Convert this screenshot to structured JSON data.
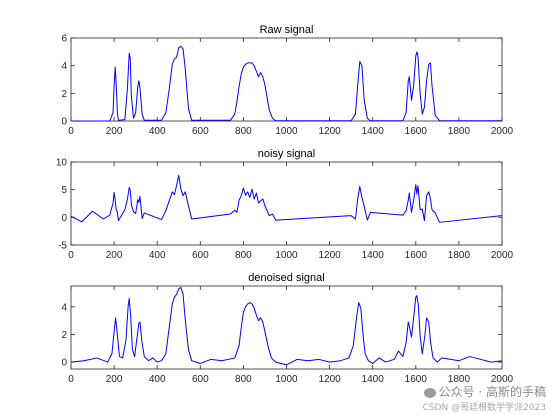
{
  "chart_data": [
    {
      "type": "line",
      "title": "Raw signal",
      "xlim": [
        0,
        2000
      ],
      "ylim": [
        0,
        6
      ],
      "xticks": [
        0,
        200,
        400,
        600,
        800,
        1000,
        1200,
        1400,
        1600,
        1800,
        2000
      ],
      "yticks": [
        0,
        2,
        4,
        6
      ],
      "color": "#0000ff",
      "grid": false,
      "series": [
        {
          "x": [
            0,
            180,
            195,
            200,
            205,
            210,
            215,
            220,
            250,
            262,
            270,
            275,
            280,
            290,
            300,
            310,
            315,
            320,
            330,
            340,
            420,
            440,
            455,
            470,
            480,
            490,
            500,
            510,
            520,
            530,
            545,
            560,
            740,
            760,
            770,
            780,
            790,
            800,
            810,
            820,
            830,
            840,
            850,
            860,
            870,
            880,
            890,
            900,
            910,
            920,
            935,
            950,
            1300,
            1320,
            1330,
            1340,
            1350,
            1360,
            1375,
            1390,
            1540,
            1555,
            1565,
            1570,
            1580,
            1590,
            1600,
            1605,
            1610,
            1620,
            1630,
            1640,
            1650,
            1660,
            1668,
            1675,
            1690,
            1710,
            2000
          ],
          "y": [
            0,
            0,
            0.6,
            2.5,
            3.9,
            2.6,
            0.6,
            0.05,
            0.1,
            2.4,
            4.9,
            4.5,
            1.8,
            0.2,
            0.6,
            2.5,
            2.9,
            2.4,
            0.5,
            0.05,
            0.05,
            0.6,
            2.2,
            4.1,
            4.5,
            4.6,
            5.3,
            5.4,
            5.2,
            3.8,
            0.9,
            0.05,
            0.05,
            0.5,
            1.4,
            2.5,
            3.4,
            3.9,
            4.1,
            4.2,
            4.2,
            4.2,
            4.0,
            3.6,
            3.2,
            3.5,
            3.2,
            2.6,
            1.7,
            0.8,
            0.2,
            0.02,
            0.02,
            0.5,
            2.5,
            4.3,
            4.0,
            1.6,
            0.2,
            0.02,
            0.02,
            0.6,
            2.9,
            3.2,
            1.5,
            2.6,
            4.7,
            5.0,
            4.7,
            2.0,
            0.5,
            1.0,
            2.9,
            4.1,
            4.2,
            2.6,
            0.4,
            0.02,
            0.02
          ]
        }
      ]
    },
    {
      "type": "line",
      "title": "noisy signal",
      "xlim": [
        0,
        2000
      ],
      "ylim": [
        -5,
        10
      ],
      "xticks": [
        0,
        200,
        400,
        600,
        800,
        1000,
        1200,
        1400,
        1600,
        1800,
        2000
      ],
      "yticks": [
        -5,
        0,
        5,
        10
      ],
      "color": "#0000ff",
      "grid": false,
      "series": [
        {
          "x": [
            0,
            50,
            100,
            150,
            180,
            195,
            200,
            205,
            210,
            215,
            220,
            250,
            262,
            270,
            275,
            280,
            290,
            300,
            310,
            315,
            320,
            330,
            340,
            420,
            440,
            455,
            470,
            480,
            490,
            500,
            510,
            520,
            530,
            545,
            560,
            740,
            760,
            770,
            780,
            790,
            800,
            810,
            820,
            830,
            840,
            850,
            860,
            870,
            880,
            890,
            900,
            910,
            920,
            935,
            950,
            1300,
            1320,
            1330,
            1340,
            1350,
            1360,
            1375,
            1390,
            1540,
            1555,
            1565,
            1570,
            1580,
            1590,
            1600,
            1605,
            1610,
            1620,
            1630,
            1640,
            1650,
            1660,
            1668,
            1675,
            1690,
            1710,
            2000
          ],
          "y": [
            0.2,
            -0.8,
            1.1,
            -0.3,
            0.4,
            2.6,
            4.5,
            3.1,
            1.3,
            1.0,
            -0.6,
            1.4,
            3.3,
            5.4,
            4.9,
            2.3,
            1.0,
            0.7,
            3.2,
            2.7,
            3.8,
            -0.2,
            0.8,
            -0.4,
            1.2,
            2.9,
            4.6,
            4.1,
            5.8,
            7.6,
            5.1,
            3.9,
            4.6,
            2.1,
            -0.3,
            0.6,
            1.3,
            0.9,
            3.1,
            3.9,
            5.3,
            4.0,
            4.6,
            3.6,
            5.1,
            3.3,
            4.4,
            2.6,
            3.0,
            3.3,
            2.1,
            1.2,
            0.3,
            0.6,
            -0.5,
            0.3,
            -0.3,
            3.2,
            5.6,
            3.6,
            2.1,
            -0.5,
            0.9,
            0.4,
            1.2,
            3.1,
            4.4,
            0.9,
            3.1,
            5.9,
            4.2,
            5.7,
            1.4,
            1.5,
            -0.6,
            3.9,
            4.6,
            3.3,
            1.4,
            0.8,
            -0.9,
            0.3
          ]
        }
      ]
    },
    {
      "type": "line",
      "title": "denoised signal",
      "xlim": [
        0,
        2000
      ],
      "ylim": [
        -0.5,
        5.5
      ],
      "xticks": [
        0,
        200,
        400,
        600,
        800,
        1000,
        1200,
        1400,
        1600,
        1800,
        2000
      ],
      "yticks": [
        0,
        2,
        4
      ],
      "color": "#0000ff",
      "grid": false,
      "series": [
        {
          "x": [
            0,
            60,
            120,
            170,
            190,
            200,
            207,
            215,
            225,
            240,
            255,
            265,
            270,
            277,
            285,
            295,
            305,
            315,
            320,
            328,
            340,
            360,
            380,
            400,
            420,
            440,
            455,
            470,
            480,
            490,
            500,
            510,
            520,
            530,
            545,
            560,
            600,
            650,
            700,
            760,
            780,
            790,
            800,
            810,
            820,
            830,
            840,
            850,
            860,
            870,
            880,
            890,
            900,
            915,
            930,
            950,
            1000,
            1050,
            1100,
            1150,
            1200,
            1250,
            1290,
            1310,
            1325,
            1335,
            1345,
            1355,
            1365,
            1380,
            1400,
            1430,
            1460,
            1500,
            1520,
            1540,
            1555,
            1565,
            1570,
            1580,
            1590,
            1600,
            1605,
            1612,
            1620,
            1630,
            1642,
            1650,
            1660,
            1668,
            1680,
            1700,
            1720,
            1800,
            1850,
            1900,
            1950,
            2000
          ],
          "y": [
            0,
            0.1,
            0.3,
            0.0,
            0.6,
            2.2,
            3.2,
            2.0,
            0.4,
            0.3,
            1.6,
            4.0,
            4.6,
            3.3,
            0.9,
            0.4,
            1.6,
            2.8,
            2.9,
            1.6,
            0.4,
            0.1,
            0.3,
            0.0,
            0.1,
            0.6,
            2.4,
            4.2,
            4.7,
            4.9,
            5.3,
            5.4,
            4.9,
            3.1,
            0.9,
            0.1,
            -0.1,
            0.2,
            0.1,
            0.3,
            1.2,
            2.5,
            3.6,
            4.0,
            4.2,
            4.3,
            4.2,
            3.9,
            3.4,
            3.0,
            3.2,
            2.9,
            2.2,
            1.1,
            0.3,
            0.0,
            -0.2,
            0.2,
            0.1,
            0.2,
            0.0,
            0.1,
            0.3,
            1.2,
            3.2,
            4.3,
            3.9,
            2.0,
            0.6,
            0.1,
            -0.1,
            0.3,
            0.0,
            0.2,
            0.8,
            0.4,
            1.4,
            2.9,
            2.6,
            1.8,
            3.2,
            4.7,
            4.8,
            4.1,
            1.9,
            0.6,
            1.9,
            3.2,
            2.9,
            1.5,
            0.3,
            0.0,
            0.3,
            0.1,
            0.4,
            0.2,
            0.0,
            0.1
          ]
        }
      ]
    }
  ],
  "watermark": {
    "line1": "公众号 · 高斯的手稿",
    "line2": "CSDN @哥廷根数学学派2023"
  }
}
